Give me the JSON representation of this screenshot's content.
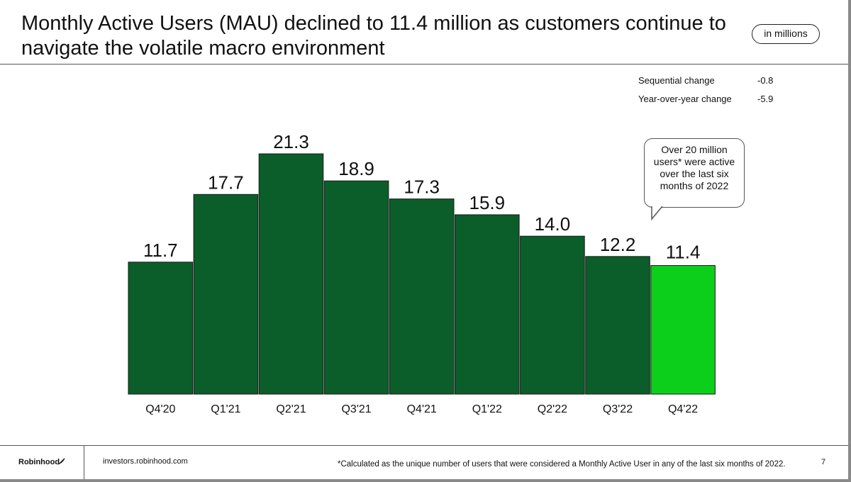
{
  "slide": {
    "title": "Monthly Active Users (MAU) declined to 11.4 million as customers continue to navigate the volatile macro environment",
    "units_label": "in millions"
  },
  "stats": [
    {
      "label": "Sequential change",
      "value": "-0.8"
    },
    {
      "label": "Year-over-year change",
      "value": "-5.9"
    }
  ],
  "callout": {
    "text": "Over 20 million users* were active over the last six months of 2022"
  },
  "footer": {
    "brand": "Robinhood",
    "site": "investors.robinhood.com",
    "footnote": "*Calculated as the unique number of users that were considered a Monthly Active User in any of the last six months of 2022.",
    "page_number": "7"
  },
  "colors": {
    "bar_dark": "#0b5d2a",
    "bar_highlight": "#0bcf1a"
  },
  "chart_data": {
    "type": "bar",
    "title": "",
    "xlabel": "",
    "ylabel": "",
    "ylim": [
      0,
      21.3
    ],
    "categories": [
      "Q4'20",
      "Q1'21",
      "Q2'21",
      "Q3'21",
      "Q4'21",
      "Q1'22",
      "Q2'22",
      "Q3'22",
      "Q4'22"
    ],
    "values": [
      11.7,
      17.7,
      21.3,
      18.9,
      17.3,
      15.9,
      14.0,
      12.2,
      11.4
    ],
    "value_labels": [
      "11.7",
      "17.7",
      "21.3",
      "18.9",
      "17.3",
      "15.9",
      "14.0",
      "12.2",
      "11.4"
    ],
    "highlight_index": 8,
    "legend": "none",
    "grid": false
  }
}
